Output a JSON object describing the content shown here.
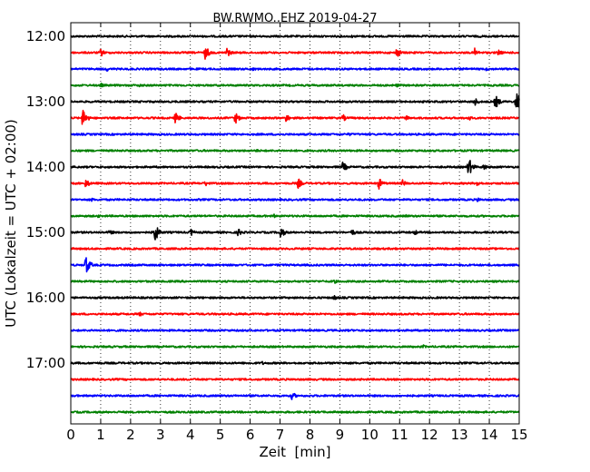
{
  "chart_data": {
    "type": "line",
    "title": "BW.RWMO..EHZ 2019-04-27",
    "xlabel": "Zeit  [min]",
    "ylabel": "UTC (Lokalzeit = UTC + 02:00)",
    "xlim": [
      0,
      15
    ],
    "x_ticks": [
      "0",
      "1",
      "2",
      "3",
      "4",
      "5",
      "6",
      "7",
      "8",
      "9",
      "10",
      "11",
      "12",
      "13",
      "14",
      "15"
    ],
    "y_ticks": [
      "12:00",
      "13:00",
      "14:00",
      "15:00",
      "16:00",
      "17:00"
    ],
    "grid": "vertical dotted at each minute",
    "trace_interval_min": 15,
    "trace_colors": [
      "#000000",
      "#ff0000",
      "#0000ff",
      "#008000"
    ],
    "series": [
      {
        "start": "12:00",
        "events": [
          {
            "t": 9.4,
            "amp": 0.12
          },
          {
            "t": 13.7,
            "amp": 0.1
          }
        ]
      },
      {
        "start": "12:15",
        "events": [
          {
            "t": 1.0,
            "amp": 0.35
          },
          {
            "t": 4.5,
            "amp": 0.6
          },
          {
            "t": 5.2,
            "amp": 0.5
          },
          {
            "t": 10.9,
            "amp": 0.45
          },
          {
            "t": 13.5,
            "amp": 0.4
          },
          {
            "t": 14.3,
            "amp": 0.3
          }
        ]
      },
      {
        "start": "12:30",
        "events": [
          {
            "t": 1.2,
            "amp": 0.2
          },
          {
            "t": 6.1,
            "amp": 0.15
          },
          {
            "t": 13.9,
            "amp": 0.15
          }
        ]
      },
      {
        "start": "12:45",
        "events": [
          {
            "t": 1.0,
            "amp": 0.2
          },
          {
            "t": 2.3,
            "amp": 0.15
          },
          {
            "t": 10.9,
            "amp": 0.15
          }
        ]
      },
      {
        "start": "13:00",
        "events": [
          {
            "t": 13.5,
            "amp": 0.4
          },
          {
            "t": 14.2,
            "amp": 0.6
          },
          {
            "t": 14.9,
            "amp": 1.0
          }
        ]
      },
      {
        "start": "13:15",
        "events": [
          {
            "t": 0.4,
            "amp": 0.85
          },
          {
            "t": 3.5,
            "amp": 0.5
          },
          {
            "t": 5.5,
            "amp": 0.5
          },
          {
            "t": 7.2,
            "amp": 0.35
          },
          {
            "t": 9.1,
            "amp": 0.3
          },
          {
            "t": 11.2,
            "amp": 0.25
          },
          {
            "t": 13.3,
            "amp": 0.25
          }
        ]
      },
      {
        "start": "13:30",
        "events": [
          {
            "t": 9.3,
            "amp": 0.15
          }
        ]
      },
      {
        "start": "13:45",
        "events": [
          {
            "t": 6.2,
            "amp": 0.15
          }
        ]
      },
      {
        "start": "14:00",
        "events": [
          {
            "t": 9.1,
            "amp": 0.45
          },
          {
            "t": 13.3,
            "amp": 0.85
          },
          {
            "t": 13.8,
            "amp": 0.3
          }
        ]
      },
      {
        "start": "14:15",
        "events": [
          {
            "t": 0.5,
            "amp": 0.4
          },
          {
            "t": 4.5,
            "amp": 0.25
          },
          {
            "t": 7.6,
            "amp": 0.45
          },
          {
            "t": 10.3,
            "amp": 0.5
          },
          {
            "t": 11.1,
            "amp": 0.3
          },
          {
            "t": 13.6,
            "amp": 0.3
          }
        ]
      },
      {
        "start": "14:30",
        "events": [
          {
            "t": 0.7,
            "amp": 0.15
          },
          {
            "t": 13.6,
            "amp": 0.2
          }
        ]
      },
      {
        "start": "14:45",
        "events": [
          {
            "t": 0.9,
            "amp": 0.15
          },
          {
            "t": 6.8,
            "amp": 0.15
          },
          {
            "t": 11.2,
            "amp": 0.15
          }
        ]
      },
      {
        "start": "15:00",
        "events": [
          {
            "t": 1.3,
            "amp": 0.25
          },
          {
            "t": 2.8,
            "amp": 0.85
          },
          {
            "t": 4.0,
            "amp": 0.35
          },
          {
            "t": 5.6,
            "amp": 0.35
          },
          {
            "t": 7.0,
            "amp": 0.6
          },
          {
            "t": 9.4,
            "amp": 0.3
          },
          {
            "t": 11.5,
            "amp": 0.25
          }
        ]
      },
      {
        "start": "15:15",
        "events": [
          {
            "t": 10.8,
            "amp": 0.15
          }
        ]
      },
      {
        "start": "15:30",
        "events": [
          {
            "t": 0.5,
            "amp": 0.85
          }
        ]
      },
      {
        "start": "15:45",
        "events": [
          {
            "t": 8.8,
            "amp": 0.2
          }
        ]
      },
      {
        "start": "16:00",
        "events": [
          {
            "t": 8.8,
            "amp": 0.25
          }
        ]
      },
      {
        "start": "16:15",
        "events": [
          {
            "t": 2.3,
            "amp": 0.2
          }
        ]
      },
      {
        "start": "16:30",
        "events": []
      },
      {
        "start": "16:45",
        "events": [
          {
            "t": 11.8,
            "amp": 0.15
          }
        ]
      },
      {
        "start": "17:00",
        "events": [
          {
            "t": 6.4,
            "amp": 0.15
          }
        ]
      },
      {
        "start": "17:15",
        "events": []
      },
      {
        "start": "17:30",
        "events": [
          {
            "t": 7.4,
            "amp": 0.35
          }
        ]
      },
      {
        "start": "17:45",
        "events": []
      }
    ]
  }
}
